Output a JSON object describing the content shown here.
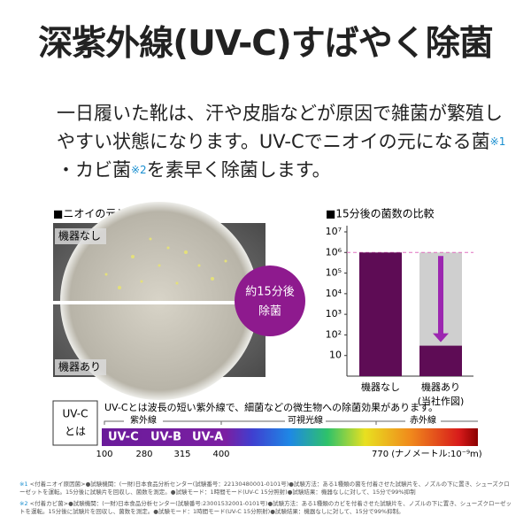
{
  "header": {
    "title": "深紫外線(UV-C)すばやく除菌"
  },
  "intro": {
    "line1": "一日履いた靴は、汗や皮脂などが原因で雑菌が繁殖し",
    "line2": "やすい状態になります。UV-Cでニオイの元になる菌",
    "note1": "※1",
    "line3a": "・カビ菌",
    "note2": "※2",
    "line3b": "を素早く除菌します。"
  },
  "photo": {
    "title": "■ニオイの元となる菌",
    "top_label": "機器なし",
    "bottom_label": "機器あり"
  },
  "badge": {
    "lines": [
      "約15分後",
      "除菌"
    ]
  },
  "bar_chart": {
    "type": "bar",
    "title": "■15分後の菌数の比較",
    "categories": [
      "機器なし",
      "機器あり"
    ],
    "values": [
      1000000,
      30
    ],
    "color": "#5e0c55",
    "log_scale": true,
    "ylim": [
      1,
      20000000
    ],
    "yticks": [
      {
        "value": 10000000,
        "label": "10⁷"
      },
      {
        "value": 1000000,
        "label": "10⁶"
      },
      {
        "value": 100000,
        "label": "10⁵"
      },
      {
        "value": 10000,
        "label": "10⁴"
      },
      {
        "value": 1000,
        "label": "10³"
      },
      {
        "value": 100,
        "label": "10²"
      },
      10
    ],
    "note": "(当社作図)"
  },
  "spectrum": {
    "label": [
      "UV-C",
      "とは"
    ],
    "description": "UV-Cとは波長の短い紫外線で、細菌などの微生物への除菌効果があります。",
    "regions": [
      "紫外線",
      "可視光線",
      "赤外線"
    ],
    "bands": [
      "UV-C",
      "UV-B",
      "UV-A"
    ],
    "scale": [
      "100",
      "280",
      "315",
      "400",
      "770 (ナノメートル:10⁻⁹m)"
    ]
  },
  "footnotes": [
    {
      "mark": "※1",
      "text": "<付着ニオイ原因菌>●試験機関：(一財)日本食品分析センター(試験番号：22130480001-0101号)●試験方法：ある1種類の菌を付着させた試験片を、ノズルの下に置き、シューズクローゼットを運転。15分後に試験片を回収し、菌数を測定。●試験モード：1時間モード(UV-C 15分照射)●試験結果：機器なしに対して、15分で99%抑制"
    },
    {
      "mark": "※2",
      "text": "<付着カビ菌>●試験機関：(一財)日本食品分析センター(試験番号:23001532001-0101号)●試験方法：ある1種類のカビを付着させた試験片を、ノズルの下に置き、シューズクローゼットを運転。15分後に試験片を回収し、菌数を測定。●試験モード：1時間モード(UV-C 15分照射)●試験結果：機器なしに対して、15分で99%抑制。"
    }
  ]
}
